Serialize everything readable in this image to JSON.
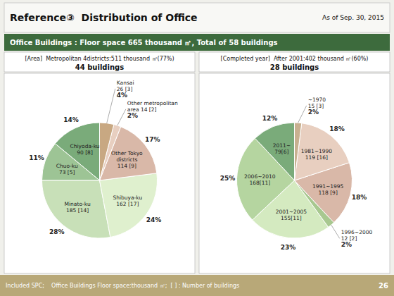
{
  "title": "Reference③  Distribution of Office",
  "subtitle": "Office Buildings : Floor space 665 thousand ㎡, Total of 58 buildings",
  "annotations": [
    "As of Sep. 30, 2015",
    "Included SPC;    Office Buildings Floor space:thousand ㎡;  [ ] : Number of buildings",
    "26"
  ],
  "chart_data": [
    {
      "type": "pie",
      "title": "[Area]  Metropolitan 4districts:511 thousand ㎡(77%)",
      "subtitle": "44 buildings",
      "categories": [
        "Chiyoda-ku\n90 [8]",
        "Chuo-ku\n73 [5]",
        "Minato-ku\n185 [14]",
        "Shibuya-ku\n162 [17]",
        "Other Tokyo\ndistricts\n114 [9]",
        "Other metropolitan\narea 14 [2]",
        "Kansai\n26 [3]"
      ],
      "values": [
        14,
        11,
        28,
        24,
        17,
        2,
        4
      ],
      "value_labels": [
        "14%",
        "11%",
        "28%",
        "24%",
        "17%",
        "2%",
        "4%"
      ],
      "colors": [
        "#7aab7a",
        "#9dc495",
        "#c8e0b8",
        "#dff0ce",
        "#d9b8a8",
        "#e8cfc0",
        "#c8a882"
      ],
      "data_labels": true
    },
    {
      "type": "pie",
      "title": "[Completed year]  After 2001:402 thousand ㎡(60%)",
      "subtitle": "28 buildings",
      "categories": [
        "2011~\n79[6]",
        "2006~2010\n168[11]",
        "2001~2005\n155[11]",
        "1996~2000\n12 [2]",
        "1991~1995\n118 [9]",
        "1981~1990\n119 [16]",
        "~1970\n15 [3]"
      ],
      "values": [
        12,
        25,
        23,
        2,
        18,
        18,
        2
      ],
      "value_labels": [
        "12%",
        "25%",
        "23%",
        "2%",
        "18%",
        "18%",
        "2%"
      ],
      "colors": [
        "#7aab7a",
        "#b5d5a0",
        "#d4eac0",
        "#a8c890",
        "#d9b8a8",
        "#e8cfc0",
        "#c8b090"
      ],
      "data_labels": true
    }
  ]
}
